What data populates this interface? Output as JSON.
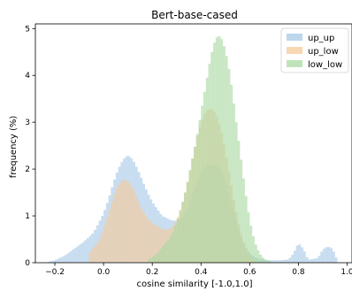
{
  "chart_data": {
    "type": "histogram",
    "title": "Bert-base-cased",
    "xlabel": "cosine similarity [-1.0,1.0]",
    "ylabel": "frequency (%)",
    "xlim": [
      -0.28,
      1.02
    ],
    "ylim": [
      0,
      5.1
    ],
    "xticks": [
      "−0.2",
      "0.0",
      "0.2",
      "0.4",
      "0.6",
      "0.8",
      "1.0"
    ],
    "xtick_values": [
      -0.2,
      0.0,
      0.2,
      0.4,
      0.6,
      0.8,
      1.0
    ],
    "yticks": [
      "0",
      "1",
      "2",
      "3",
      "4",
      "5"
    ],
    "ytick_values": [
      0,
      1,
      2,
      3,
      4,
      5
    ],
    "legend_position": "top-right",
    "grid": false,
    "series": [
      {
        "name": "up_up",
        "color": "#a6c8e6",
        "x": [
          -0.24,
          -0.2,
          -0.16,
          -0.12,
          -0.08,
          -0.04,
          -0.02,
          0.0,
          0.02,
          0.04,
          0.06,
          0.08,
          0.1,
          0.12,
          0.14,
          0.16,
          0.18,
          0.2,
          0.22,
          0.24,
          0.26,
          0.28,
          0.3,
          0.32,
          0.34,
          0.36,
          0.38,
          0.4,
          0.42,
          0.44,
          0.46,
          0.48,
          0.5,
          0.52,
          0.54,
          0.56,
          0.58,
          0.6,
          0.62,
          0.64,
          0.68,
          0.72,
          0.76,
          0.78,
          0.8,
          0.82,
          0.84,
          0.88,
          0.9,
          0.92,
          0.94,
          0.96
        ],
        "y": [
          0.0,
          0.05,
          0.15,
          0.3,
          0.45,
          0.65,
          0.85,
          1.05,
          1.35,
          1.7,
          2.0,
          2.2,
          2.3,
          2.2,
          2.0,
          1.75,
          1.5,
          1.3,
          1.15,
          1.0,
          0.95,
          0.9,
          0.9,
          0.95,
          1.1,
          1.4,
          1.7,
          1.95,
          2.05,
          2.1,
          2.1,
          2.0,
          1.75,
          1.4,
          1.0,
          0.6,
          0.35,
          0.2,
          0.12,
          0.08,
          0.05,
          0.05,
          0.07,
          0.2,
          0.42,
          0.3,
          0.06,
          0.1,
          0.28,
          0.35,
          0.3,
          0.05
        ]
      },
      {
        "name": "up_low",
        "color": "#f7c99a",
        "x": [
          -0.06,
          -0.02,
          0.0,
          0.02,
          0.04,
          0.06,
          0.08,
          0.1,
          0.12,
          0.14,
          0.16,
          0.18,
          0.2,
          0.22,
          0.24,
          0.26,
          0.28,
          0.3,
          0.32,
          0.34,
          0.36,
          0.38,
          0.4,
          0.42,
          0.44,
          0.46,
          0.48,
          0.5,
          0.52,
          0.54,
          0.56,
          0.58,
          0.6,
          0.62,
          0.64
        ],
        "y": [
          0.2,
          0.45,
          0.7,
          1.05,
          1.4,
          1.65,
          1.78,
          1.75,
          1.6,
          1.35,
          1.1,
          0.95,
          0.85,
          0.78,
          0.72,
          0.7,
          0.75,
          0.9,
          1.2,
          1.6,
          2.1,
          2.6,
          3.0,
          3.25,
          3.3,
          3.2,
          2.9,
          2.4,
          1.8,
          1.2,
          0.7,
          0.35,
          0.15,
          0.05,
          0.0
        ]
      },
      {
        "name": "low_low",
        "color": "#a9d9a2",
        "x": [
          0.18,
          0.22,
          0.26,
          0.28,
          0.3,
          0.32,
          0.34,
          0.36,
          0.38,
          0.4,
          0.42,
          0.44,
          0.46,
          0.48,
          0.5,
          0.52,
          0.54,
          0.56,
          0.58,
          0.6,
          0.62,
          0.64,
          0.66,
          0.7
        ],
        "y": [
          0.05,
          0.2,
          0.45,
          0.6,
          0.85,
          1.2,
          1.6,
          2.1,
          2.6,
          3.2,
          3.8,
          4.4,
          4.8,
          4.85,
          4.55,
          4.0,
          3.2,
          2.4,
          1.6,
          0.9,
          0.45,
          0.2,
          0.08,
          0.0
        ]
      }
    ]
  }
}
